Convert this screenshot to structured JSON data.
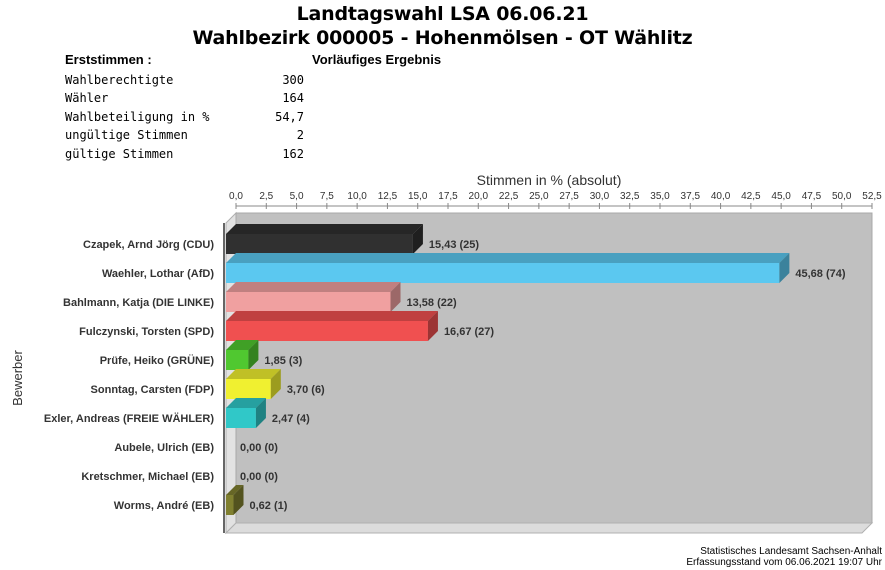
{
  "header": {
    "title": "Landtagswahl LSA 06.06.21",
    "subtitle": "Wahlbezirk 000005 - Hohenmölsen - OT Wählitz"
  },
  "summary": {
    "section_label": "Erststimmen  :",
    "status": "Vorläufiges Ergebnis",
    "rows": [
      {
        "label": "Wahlberechtigte",
        "value": "300"
      },
      {
        "label": "Wähler",
        "value": "164"
      },
      {
        "label": "Wahlbeteiligung in %",
        "value": "54,7"
      },
      {
        "label": "ungültige Stimmen",
        "value": "2"
      },
      {
        "label": "gültige Stimmen",
        "value": "162"
      }
    ]
  },
  "chart_data": {
    "type": "bar",
    "orientation": "horizontal",
    "xlabel": "Stimmen in % (absolut)",
    "ylabel": "Bewerber",
    "xlim": [
      0,
      52.5
    ],
    "xticks": [
      "0,0",
      "2,5",
      "5,0",
      "7,5",
      "10,0",
      "12,5",
      "15,0",
      "17,5",
      "20,0",
      "22,5",
      "25,0",
      "27,5",
      "30,0",
      "32,5",
      "35,0",
      "37,5",
      "40,0",
      "42,5",
      "45,0",
      "47,5",
      "50,0",
      "52,5"
    ],
    "grid": false,
    "categories": [
      "Czapek, Arnd Jörg (CDU)",
      "Waehler, Lothar (AfD)",
      "Bahlmann, Katja (DIE LINKE)",
      "Fulczynski, Torsten (SPD)",
      "Prüfe, Heiko (GRÜNE)",
      "Sonntag, Carsten (FDP)",
      "Exler, Andreas (FREIE WÄHLER)",
      "Aubele, Ulrich (EB)",
      "Kretschmer, Michael (EB)",
      "Worms, André (EB)"
    ],
    "values": [
      15.43,
      45.68,
      13.58,
      16.67,
      1.85,
      3.7,
      2.47,
      0.0,
      0.0,
      0.62
    ],
    "data_labels": [
      "15,43 (25)",
      "45,68 (74)",
      "13,58 (22)",
      "16,67 (27)",
      "1,85 (3)",
      "3,70 (6)",
      "2,47 (4)",
      "0,00 (0)",
      "0,00 (0)",
      "0,62 (1)"
    ],
    "colors": [
      "#303030",
      "#5bc8f0",
      "#f0a0a0",
      "#f05050",
      "#50c830",
      "#f0f030",
      "#30c8c8",
      "#a0a0a0",
      "#a0a0a0",
      "#808030"
    ],
    "plot_background": "#c0c0c0"
  },
  "footer": {
    "line1": "Statistisches Landesamt Sachsen-Anhalt",
    "line2": "Erfassungsstand vom 06.06.2021 19:07 Uhr"
  }
}
